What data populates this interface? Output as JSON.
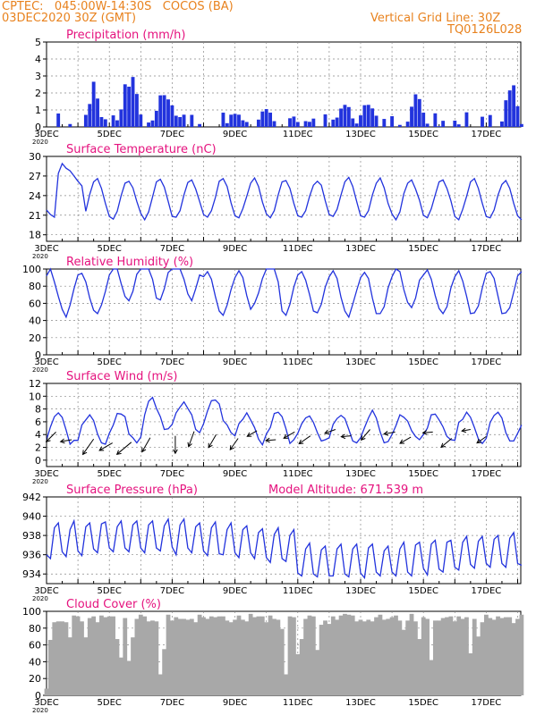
{
  "header": {
    "line1": "CPTEC:   045:00W-14:30S   COCOS (BA)",
    "line2": "03DEC2020 30Z (GMT)",
    "vgrid": "Vertical Grid Line: 30Z",
    "code": "TQ0126L028"
  },
  "colors": {
    "header": "#e8821e",
    "panel_title": "#e5127e",
    "line": "#2233dd",
    "bar": "#2233dd",
    "cloud": "#a8a8a8"
  },
  "x_axis": {
    "tick_labels": [
      "3DEC",
      "5DEC",
      "7DEC",
      "9DEC",
      "11DEC",
      "13DEC",
      "15DEC",
      "17DEC"
    ],
    "tick_days": [
      3,
      5,
      7,
      9,
      11,
      13,
      15,
      17
    ],
    "year_label": "2020",
    "range_days": [
      3,
      18.1
    ]
  },
  "chart_data": [
    {
      "type": "bar",
      "title": "Precipitation (mm/h)",
      "ylim": [
        0,
        5
      ],
      "yticks": [
        0,
        1,
        2,
        3,
        4,
        5
      ],
      "series": [
        {
          "x": [],
          "values": []
        }
      ]
    },
    {
      "type": "line",
      "title": "Surface Temperature (nC)",
      "ylim": [
        17,
        30
      ],
      "yticks": [
        18,
        21,
        24,
        27,
        30
      ],
      "series": [
        {
          "x": [],
          "values": []
        }
      ]
    },
    {
      "type": "line",
      "title": "Relative Humidity (%)",
      "ylim": [
        0,
        100
      ],
      "yticks": [
        0,
        20,
        40,
        60,
        80,
        100
      ],
      "series": [
        {
          "x": [],
          "values": []
        }
      ]
    },
    {
      "type": "line",
      "title": "Surface Wind (m/s)",
      "ylim": [
        -1,
        12
      ],
      "yticks": [
        0,
        2,
        4,
        6,
        8,
        10,
        12
      ],
      "series": [
        {
          "x": [],
          "values": []
        }
      ],
      "wind_barbs": {
        "x": [],
        "y": [],
        "angle_deg": [],
        "len": []
      }
    },
    {
      "type": "line",
      "title": "Surface Pressure (hPa)",
      "subtitle": "Model Altitude: 671.539  m",
      "ylim": [
        933,
        942
      ],
      "yticks": [
        934,
        936,
        938,
        940,
        942
      ],
      "series": [
        {
          "x": [],
          "values": []
        }
      ]
    },
    {
      "type": "area",
      "title": "Cloud Cover (%)",
      "ylim": [
        0,
        100
      ],
      "yticks": [
        0,
        20,
        40,
        60,
        80,
        100
      ],
      "series": [
        {
          "x": [],
          "values": []
        }
      ]
    }
  ]
}
